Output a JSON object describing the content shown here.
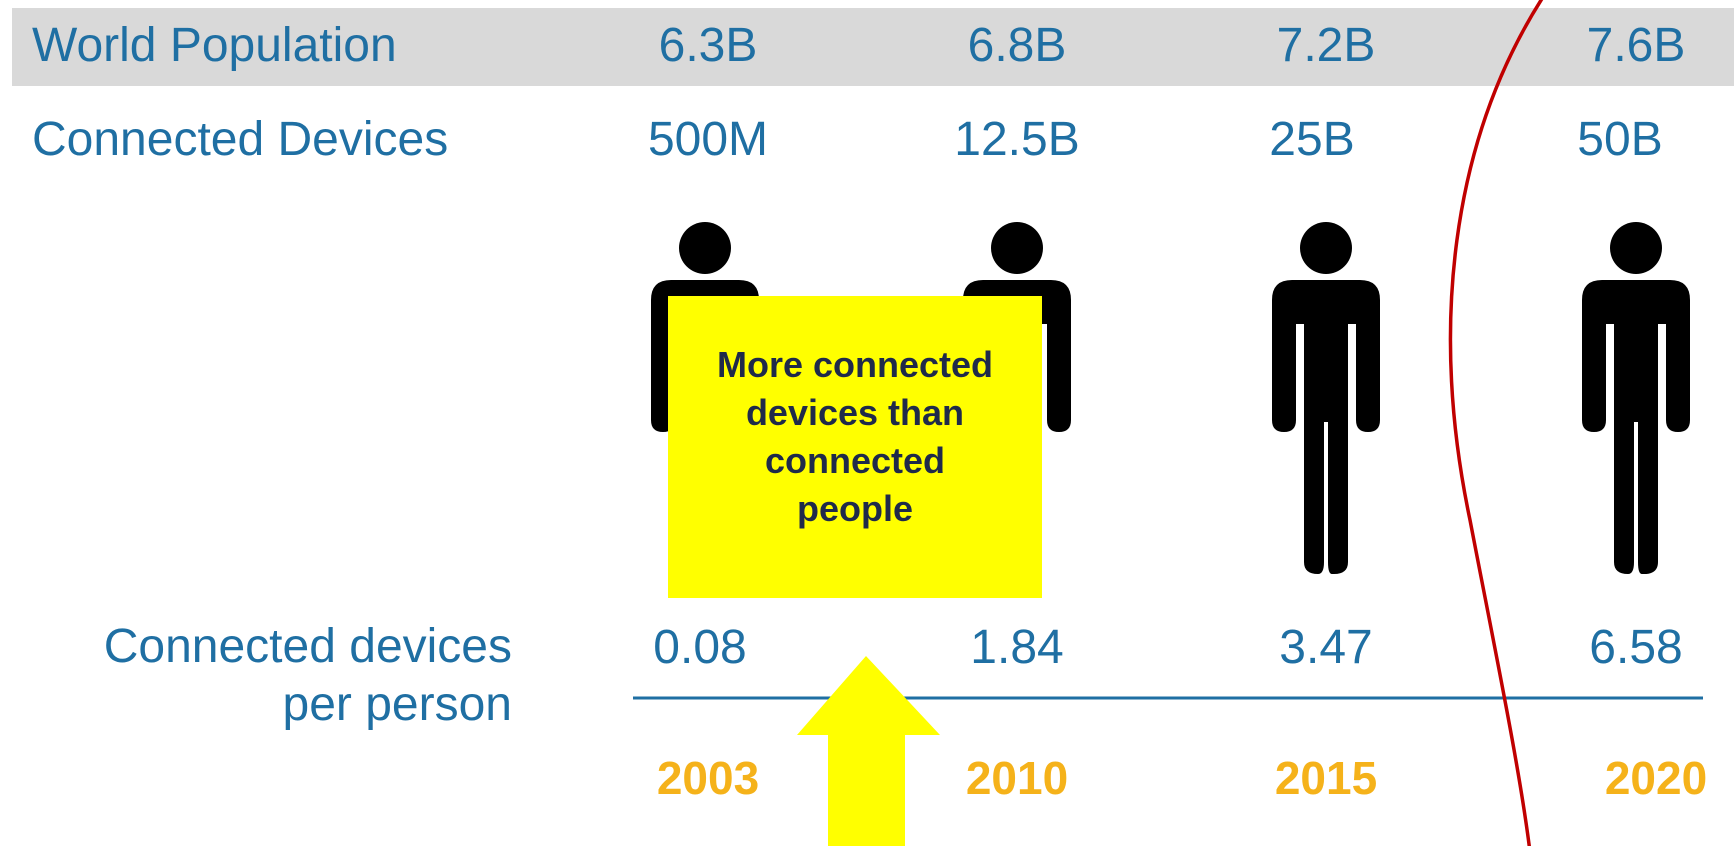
{
  "chart_data": {
    "type": "table",
    "categories": [
      "2003",
      "2010",
      "2015",
      "2020"
    ],
    "rows": [
      {
        "label": "World Population",
        "values": [
          "6.3B",
          "6.8B",
          "7.2B",
          "7.6B"
        ]
      },
      {
        "label": "Connected Devices",
        "values": [
          "500M",
          "12.5B",
          "25B",
          "50B"
        ]
      },
      {
        "label_lines": [
          "Connected devices",
          "per person"
        ],
        "values": [
          "0.08",
          "1.84",
          "3.47",
          "6.58"
        ]
      }
    ],
    "callout": {
      "lines": [
        "More connected",
        "devices than",
        "connected",
        "people"
      ]
    },
    "highlighted_category": "2020"
  },
  "colors": {
    "text": "#1f6fa3",
    "year": "#f5b21a",
    "band": "#d9d9d9",
    "callout": "#ffff00",
    "highlight": "#c00000",
    "figure": "#000000"
  },
  "icons": {
    "person": "person-icon",
    "arrow": "up-arrow-icon"
  }
}
